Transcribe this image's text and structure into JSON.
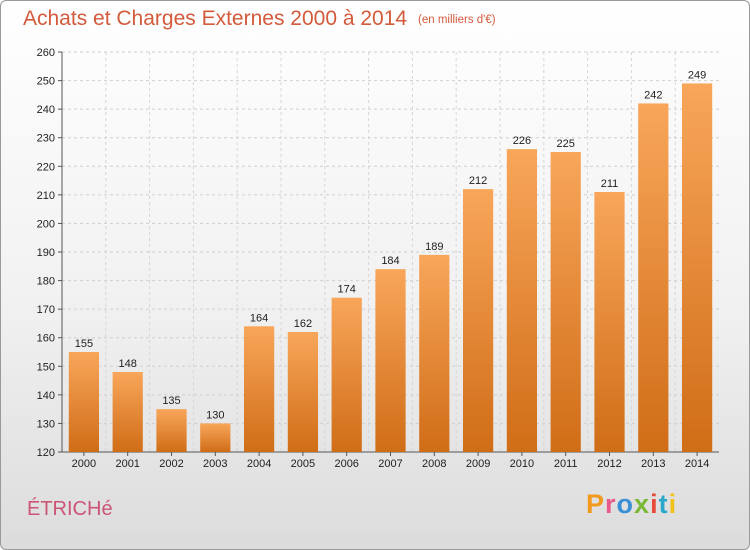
{
  "title": "Achats et Charges Externes 2000 à 2014",
  "subtitle": "(en milliers d'€)",
  "commune": "ÉTRICHé",
  "brand": {
    "letters": [
      "P",
      "r",
      "o",
      "x",
      "i",
      "t",
      "i"
    ]
  },
  "colors": {
    "title": "#d35a3b",
    "commune": "#cc5577",
    "bar_top": "#f8a65a",
    "bar_bottom": "#d06d17"
  },
  "chart_data": {
    "type": "bar",
    "title": "Achats et Charges Externes 2000 à 2014",
    "subtitle": "(en milliers d'€)",
    "xlabel": "",
    "ylabel": "",
    "categories": [
      "2000",
      "2001",
      "2002",
      "2003",
      "2004",
      "2005",
      "2006",
      "2007",
      "2008",
      "2009",
      "2010",
      "2011",
      "2012",
      "2013",
      "2014"
    ],
    "values": [
      155,
      148,
      135,
      130,
      164,
      162,
      174,
      184,
      189,
      212,
      226,
      225,
      211,
      242,
      249
    ],
    "ylim": [
      120,
      260
    ],
    "yticks": [
      120,
      130,
      140,
      150,
      160,
      170,
      180,
      190,
      200,
      210,
      220,
      230,
      240,
      250,
      260
    ],
    "grid": true,
    "legend": "none"
  }
}
